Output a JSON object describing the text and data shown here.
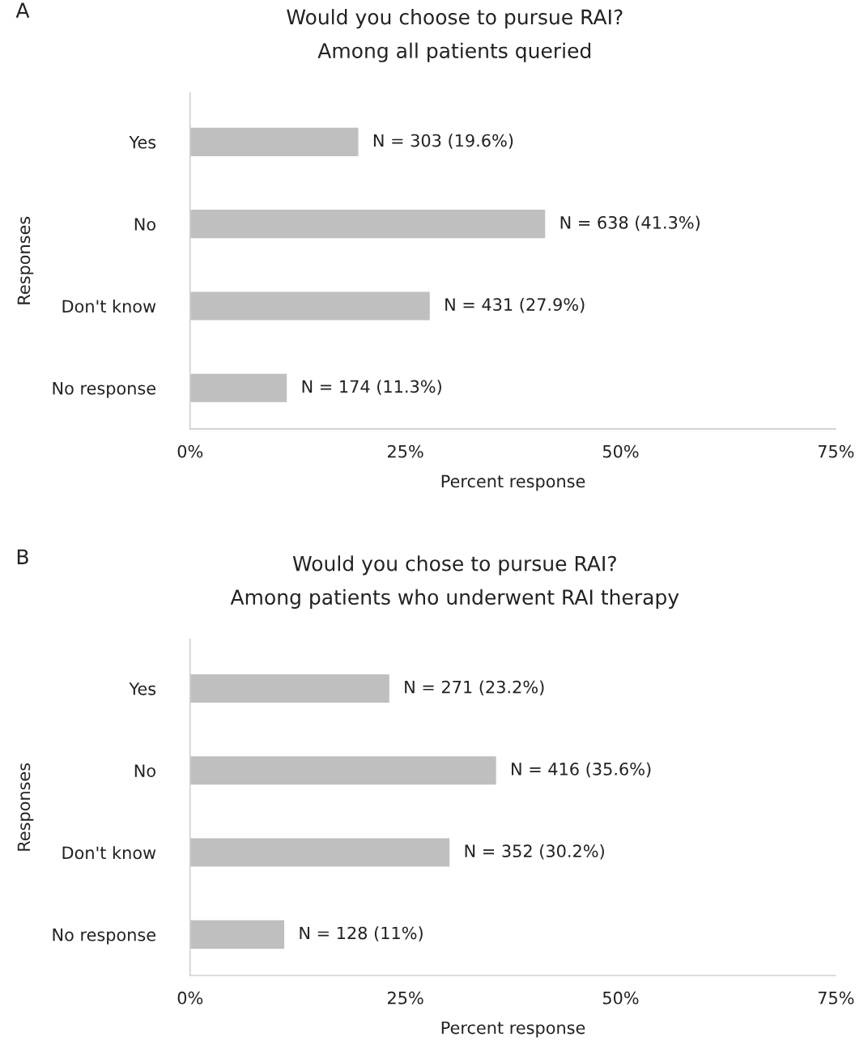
{
  "chart_data": [
    {
      "type": "bar",
      "orientation": "horizontal",
      "title": "Would you choose to pursue RAI?",
      "subtitle": "Among all patients queried",
      "xlabel": "Percent response",
      "ylabel": "Responses",
      "annotations": [
        "A"
      ],
      "categories": [
        "Yes",
        "No",
        "Don't know",
        "No response"
      ],
      "values": [
        19.6,
        41.3,
        27.9,
        11.3
      ],
      "color": "#bfbfbf",
      "value_labels": [
        "N = 303 (19.6%)",
        "N = 638 (41.3%)",
        "N = 431 (27.9%)",
        "N = 174 (11.3%)"
      ],
      "xlim": [
        0,
        75
      ],
      "xticks": [
        {
          "value": 0,
          "label": "0%"
        },
        {
          "value": 25,
          "label": "25%"
        },
        {
          "value": 50,
          "label": "50%"
        },
        {
          "value": 75,
          "label": "75%"
        }
      ],
      "grid": false,
      "legend": false
    },
    {
      "type": "bar",
      "orientation": "horizontal",
      "title": "Would you chose to pursue RAI?",
      "subtitle": "Among patients who underwent RAI therapy",
      "xlabel": "Percent response",
      "ylabel": "Responses",
      "annotations": [
        "B"
      ],
      "categories": [
        "Yes",
        "No",
        "Don't know",
        "No response"
      ],
      "values": [
        23.2,
        35.6,
        30.2,
        11
      ],
      "color": "#bfbfbf",
      "value_labels": [
        "N = 271 (23.2%)",
        "N = 416 (35.6%)",
        "N = 352 (30.2%)",
        "N = 128 (11%)"
      ],
      "xlim": [
        0,
        75
      ],
      "xticks": [
        {
          "value": 0,
          "label": "0%"
        },
        {
          "value": 25,
          "label": "25%"
        },
        {
          "value": 50,
          "label": "50%"
        },
        {
          "value": 75,
          "label": "75%"
        }
      ],
      "grid": false,
      "legend": false
    }
  ]
}
